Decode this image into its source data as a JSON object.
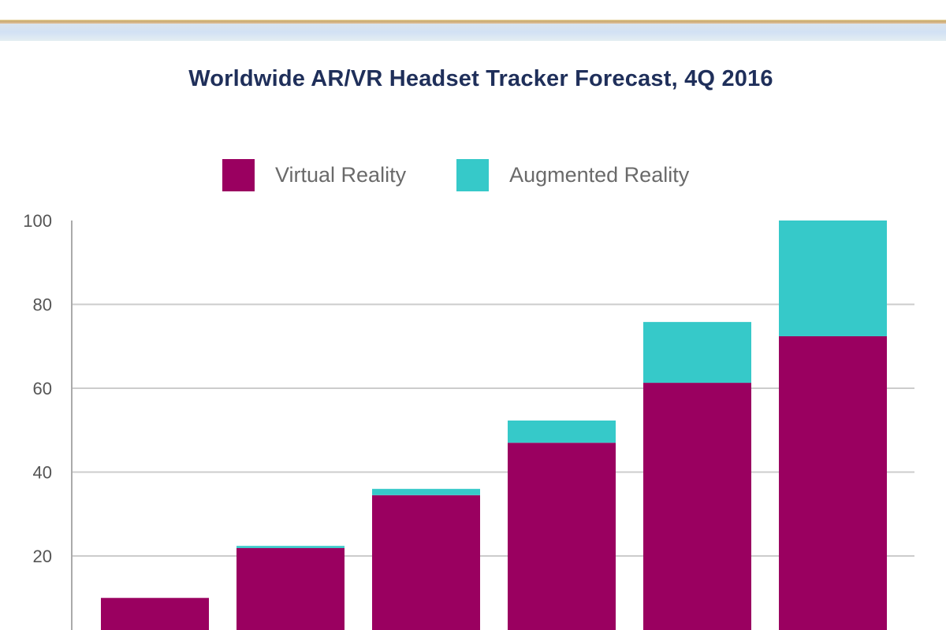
{
  "chart_data": {
    "type": "bar",
    "stacked": true,
    "title": "Worldwide AR/VR Headset Tracker Forecast, 4Q 2016",
    "xlabel": "",
    "ylabel": "",
    "categories": [
      "",
      "",
      "",
      "",
      "",
      ""
    ],
    "series": [
      {
        "name": "Virtual Reality",
        "color": "#9a0060",
        "values": [
          10.0,
          21.9,
          34.5,
          47.0,
          61.3,
          72.4
        ]
      },
      {
        "name": "Augmented Reality",
        "color": "#36c9c9",
        "values": [
          0.0,
          0.5,
          1.5,
          5.3,
          14.5,
          27.6
        ]
      }
    ],
    "ylim": [
      0,
      100
    ],
    "yticks": [
      20,
      40,
      60,
      80,
      100
    ],
    "ytick_labels": [
      "20",
      "40",
      "60",
      "80",
      "100"
    ],
    "grid": true,
    "legend": "top-center"
  },
  "colors": {
    "title": "#1f2f5a",
    "grid": "#cccccc",
    "axis": "#aaaaaa"
  }
}
